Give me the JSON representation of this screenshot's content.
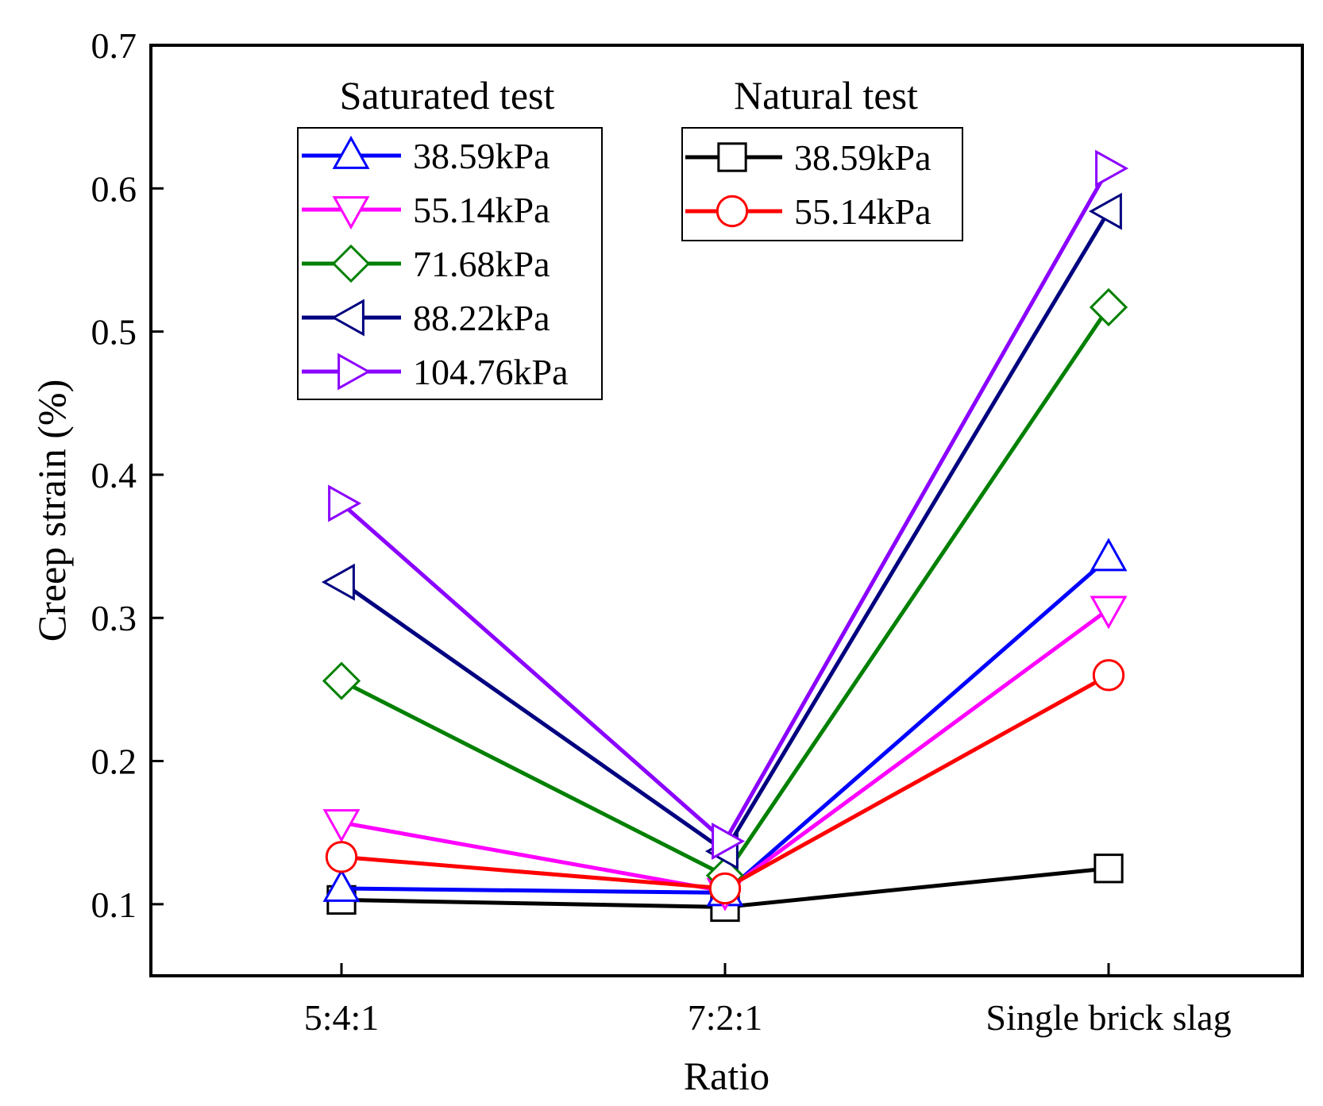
{
  "chart_data": {
    "type": "line",
    "xlabel": "Ratio",
    "ylabel": "Creep strain (%)",
    "categories": [
      "5:4:1",
      "7:2:1",
      "Single brick slag"
    ],
    "ylim": [
      0.05,
      0.7
    ],
    "yticks": [
      0.1,
      0.2,
      0.3,
      0.4,
      0.5,
      0.6,
      0.7
    ],
    "ytick_labels": [
      "0.1",
      "0.2",
      "0.3",
      "0.4",
      "0.5",
      "0.6",
      "0.7"
    ],
    "grid": false,
    "legends": [
      {
        "title": "Saturated test",
        "placement": "top-left",
        "entries": [
          "38.59kPa",
          "55.14kPa",
          "71.68kPa",
          "88.22kPa",
          "104.76kPa"
        ]
      },
      {
        "title": "Natural test",
        "placement": "top-center",
        "entries": [
          "38.59kPa",
          "55.14kPa"
        ]
      }
    ],
    "series": [
      {
        "group": "Saturated test",
        "name": "38.59kPa",
        "marker": "triangle-up",
        "color": "#0000ff",
        "values": [
          0.111,
          0.108,
          0.342
        ]
      },
      {
        "group": "Saturated test",
        "name": "55.14kPa",
        "marker": "triangle-down",
        "color": "#ff00ff",
        "values": [
          0.157,
          0.109,
          0.306
        ]
      },
      {
        "group": "Saturated test",
        "name": "71.68kPa",
        "marker": "diamond",
        "color": "#008000",
        "values": [
          0.256,
          0.12,
          0.517
        ]
      },
      {
        "group": "Saturated test",
        "name": "88.22kPa",
        "marker": "triangle-left",
        "color": "#000080",
        "values": [
          0.325,
          0.137,
          0.584
        ]
      },
      {
        "group": "Saturated test",
        "name": "104.76kPa",
        "marker": "triangle-right",
        "color": "#8b00ff",
        "values": [
          0.38,
          0.144,
          0.614
        ]
      },
      {
        "group": "Natural test",
        "name": "38.59kPa",
        "marker": "square",
        "color": "#000000",
        "values": [
          0.103,
          0.098,
          0.125
        ]
      },
      {
        "group": "Natural test",
        "name": "55.14kPa",
        "marker": "circle",
        "color": "#ff0000",
        "values": [
          0.133,
          0.111,
          0.26
        ]
      }
    ]
  }
}
